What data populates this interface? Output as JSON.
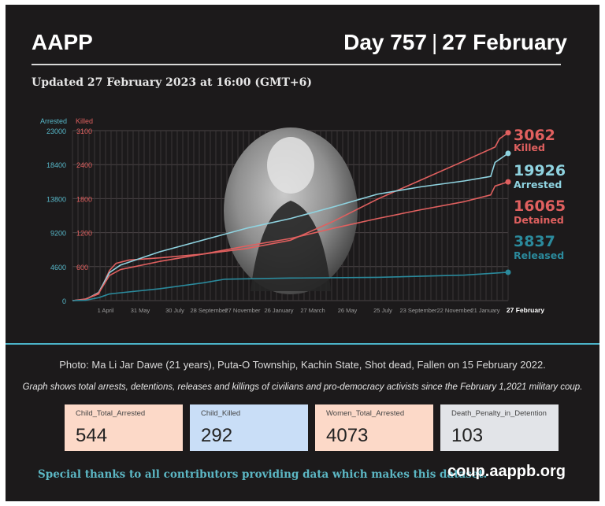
{
  "header": {
    "brand": "AAPP",
    "day": "Day 757",
    "date": "27 February",
    "separator": "|",
    "updated": "Updated 27 February 2023 at 16:00 (GMT+6)"
  },
  "colors": {
    "killed": "#e0605f",
    "detained": "#e0605f",
    "arrested": "#8fd3e0",
    "released": "#2b8a9c",
    "arrested_axis": "#57b8c9",
    "killed_axis": "#e0605f"
  },
  "photo": {
    "icon": "portrait-photo"
  },
  "chart_data": {
    "type": "line",
    "x_axis": {
      "ticks": [
        "1 April",
        "31 May",
        "30 July",
        "28 September",
        "27 November",
        "26 January",
        "27 March",
        "26 May",
        "25 July",
        "23 September",
        "22 November",
        "21 January",
        "27 February"
      ]
    },
    "left_axis": {
      "label": "Arrested",
      "ticks": [
        "23000",
        "18400",
        "13800",
        "9200",
        "4600",
        "0"
      ],
      "range": [
        0,
        23000
      ]
    },
    "right_axis": {
      "label": "Killed",
      "ticks": [
        "3100",
        "2400",
        "1800",
        "1200",
        "600",
        "0"
      ],
      "range": [
        0,
        3100
      ]
    },
    "grid": true,
    "series": [
      {
        "name": "Killed",
        "axis": "killed",
        "points": [
          [
            0,
            0
          ],
          [
            0.03,
            30
          ],
          [
            0.06,
            120
          ],
          [
            0.085,
            550
          ],
          [
            0.1,
            680
          ],
          [
            0.13,
            740
          ],
          [
            0.2,
            780
          ],
          [
            0.3,
            850
          ],
          [
            0.4,
            950
          ],
          [
            0.5,
            1100
          ],
          [
            0.6,
            1450
          ],
          [
            0.7,
            1850
          ],
          [
            0.8,
            2200
          ],
          [
            0.9,
            2550
          ],
          [
            0.97,
            2800
          ],
          [
            0.98,
            2950
          ],
          [
            1,
            3062
          ]
        ]
      },
      {
        "name": "Arrested",
        "axis": "arrested",
        "points": [
          [
            0,
            0
          ],
          [
            0.03,
            150
          ],
          [
            0.06,
            1100
          ],
          [
            0.085,
            3800
          ],
          [
            0.11,
            4800
          ],
          [
            0.15,
            5600
          ],
          [
            0.2,
            6600
          ],
          [
            0.3,
            8200
          ],
          [
            0.4,
            9800
          ],
          [
            0.5,
            11100
          ],
          [
            0.6,
            12700
          ],
          [
            0.7,
            14400
          ],
          [
            0.8,
            15400
          ],
          [
            0.9,
            16200
          ],
          [
            0.96,
            16800
          ],
          [
            0.97,
            18700
          ],
          [
            1,
            19926
          ]
        ]
      },
      {
        "name": "Detained",
        "axis": "arrested",
        "points": [
          [
            0,
            0
          ],
          [
            0.03,
            150
          ],
          [
            0.06,
            1000
          ],
          [
            0.085,
            3400
          ],
          [
            0.11,
            4200
          ],
          [
            0.2,
            5300
          ],
          [
            0.3,
            6300
          ],
          [
            0.4,
            7400
          ],
          [
            0.5,
            8400
          ],
          [
            0.6,
            9800
          ],
          [
            0.7,
            11100
          ],
          [
            0.8,
            12300
          ],
          [
            0.9,
            13400
          ],
          [
            0.96,
            14300
          ],
          [
            0.97,
            15500
          ],
          [
            1,
            16065
          ]
        ]
      },
      {
        "name": "Released",
        "axis": "arrested",
        "points": [
          [
            0,
            0
          ],
          [
            0.03,
            50
          ],
          [
            0.06,
            400
          ],
          [
            0.085,
            900
          ],
          [
            0.1,
            1000
          ],
          [
            0.2,
            1600
          ],
          [
            0.3,
            2400
          ],
          [
            0.35,
            2900
          ],
          [
            0.5,
            3050
          ],
          [
            0.7,
            3150
          ],
          [
            0.9,
            3450
          ],
          [
            1,
            3837
          ]
        ]
      }
    ],
    "end_labels": [
      {
        "value": "3062",
        "label": "Killed",
        "color": "#e0605f"
      },
      {
        "value": "19926",
        "label": "Arrested",
        "color": "#8fd3e0"
      },
      {
        "value": "16065",
        "label": "Detained",
        "color": "#e0605f"
      },
      {
        "value": "3837",
        "label": "Released",
        "color": "#2b8a9c"
      }
    ]
  },
  "caption": "Photo: Ma Li Jar Dawe (21 years), Puta-O Township, Kachin State, Shot dead, Fallen on 15 February 2022.",
  "note": "Graph shows total arrests, detentions, releases and killings of civilians and pro-democracy activists since the February 1,2021 military coup.",
  "cards": [
    {
      "name": "Child_Total_Arrested",
      "value": "544",
      "bg": "#fcd9c8"
    },
    {
      "name": "Child_Killed",
      "value": "292",
      "bg": "#c9def7"
    },
    {
      "name": "Women_Total_Arrested",
      "value": "4073",
      "bg": "#fcd9c8"
    },
    {
      "name": "Death_Penalty_in_Detention",
      "value": "103",
      "bg": "#e2e4e8"
    }
  ],
  "footer": {
    "thanks": "Special thanks to all contributors providing data which makes this dataset.",
    "site": "coup.aappb.org"
  }
}
